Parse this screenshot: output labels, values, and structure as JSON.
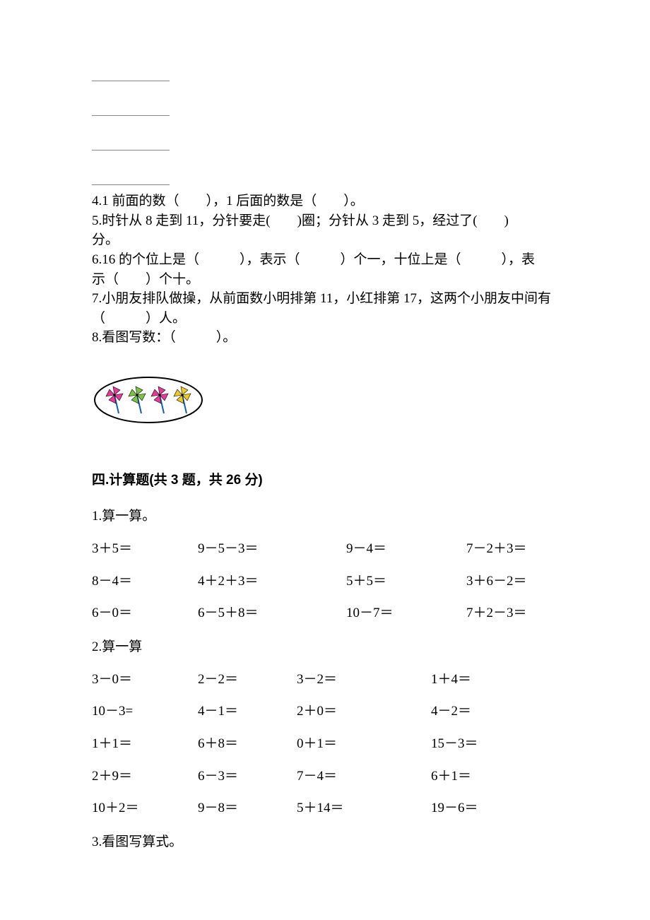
{
  "fill": {
    "q4": "4.1 前面的数（　　），1 后面的数是（　　）。",
    "q5a": "5.时针从 8 走到 11，分针要走(　　)圈；分针从 3 走到 5，经过了(　　)",
    "q5b": "分。",
    "q6a": "6.16 的个位上是（　　　），表示（　　　）个一，十位上是（　　　），表",
    "q6b": "示（　　）个十。",
    "q7a": "7.小朋友排队做操，从前面数小明排第 11，小红排第 17，这两个小朋友中间有",
    "q7b": "（　　　）人。",
    "q8": "8.看图写数：（　　　）。"
  },
  "section4": {
    "title": "四.计算题(共 3 题，共 26 分)",
    "q1": {
      "label": "1.算一算。",
      "rows": [
        [
          "3＋5＝",
          "9－5－3＝",
          "9－4＝",
          "7－2＋3＝"
        ],
        [
          "8－4＝",
          "4＋2＋3＝",
          "5＋5＝",
          "3＋6－2＝"
        ],
        [
          "6－0＝",
          "6－5＋8＝",
          "10－7＝",
          "7＋2－3＝"
        ]
      ]
    },
    "q2": {
      "label": "2.算一算",
      "rows": [
        [
          "3－0＝",
          "2－2＝",
          "3－2＝",
          "1＋4＝"
        ],
        [
          "10－3=",
          "4－1＝",
          "2＋0＝",
          "4－2＝"
        ],
        [
          "1＋1＝",
          "6＋8＝",
          "0＋1＝",
          "15－3＝"
        ],
        [
          "2＋9＝",
          "6－3＝",
          "7－4＝",
          " 6＋1＝"
        ],
        [
          "10＋2＝",
          "9－8＝",
          "5＋14＝",
          "19－6＝"
        ]
      ]
    },
    "q3": {
      "label": "3.看图写算式。"
    }
  },
  "pinwheel": {
    "count": 4,
    "blade_colors": [
      "#e23c9b",
      "#7cc24a",
      "#e23c9b",
      "#e9c92f"
    ],
    "stick_color": "#1b5fa7",
    "ellipse_stroke": "#000000",
    "background": "#ffffff"
  }
}
